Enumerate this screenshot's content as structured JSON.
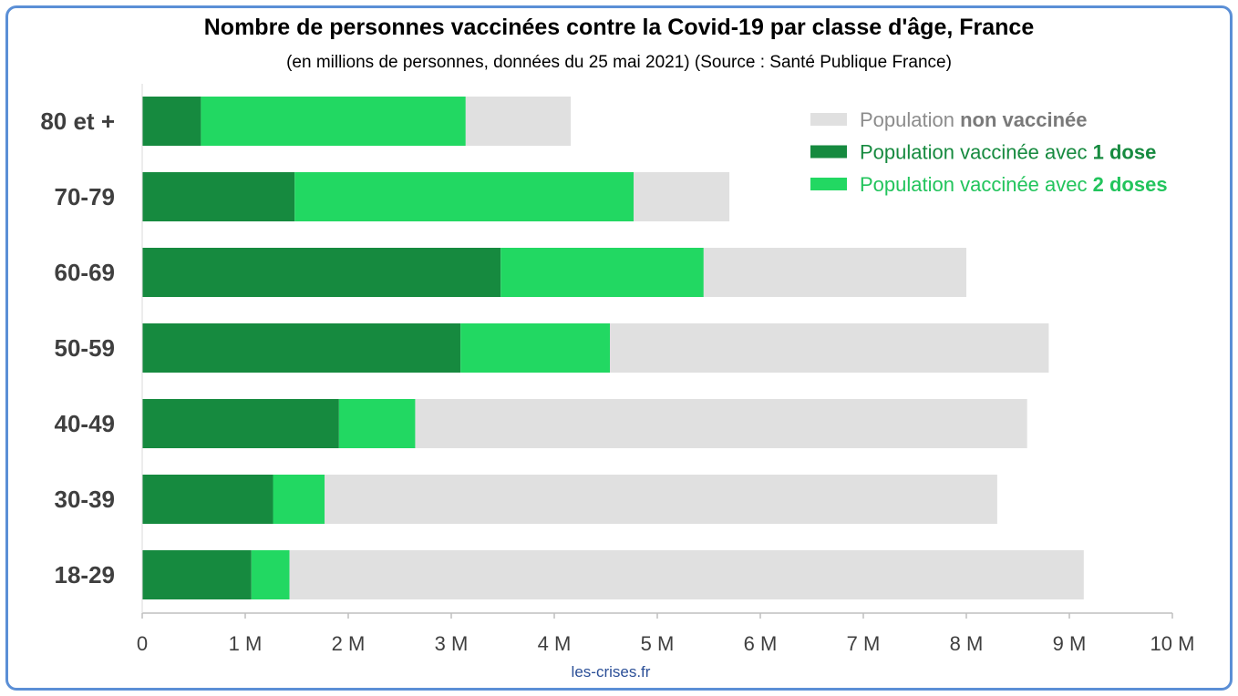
{
  "chart_data": {
    "type": "bar",
    "orientation": "horizontal",
    "stacked": true,
    "title": "Nombre de personnes vaccinées contre la Covid-19 par classe d'âge, France",
    "subtitle": "(en millions de personnes, données du 25 mai 2021) (Source : Santé Publique France)",
    "categories": [
      "80 et +",
      "70-79",
      "60-69",
      "50-59",
      "40-49",
      "30-39",
      "18-29"
    ],
    "xlim": [
      0,
      10
    ],
    "x_ticks": [
      0,
      1,
      2,
      3,
      4,
      5,
      6,
      7,
      8,
      9,
      10
    ],
    "x_tick_labels": [
      "0",
      "1 M",
      "2 M",
      "3 M",
      "4 M",
      "5 M",
      "6 M",
      "7 M",
      "8 M",
      "9 M",
      "10 M"
    ],
    "series": [
      {
        "name": "Population vaccinée avec 1 dose",
        "key": "dose1",
        "color": "#168a3f",
        "values": [
          0.57,
          1.48,
          3.48,
          3.09,
          1.91,
          1.27,
          1.06
        ]
      },
      {
        "name": "Population vaccinée avec 2 doses",
        "key": "dose2",
        "color": "#22d862",
        "values": [
          2.57,
          3.29,
          1.97,
          1.45,
          0.74,
          0.5,
          0.37
        ]
      },
      {
        "name": "Population non vaccinée",
        "key": "non",
        "color": "#e0e0e0",
        "values": [
          1.02,
          0.93,
          2.55,
          4.26,
          5.94,
          6.53,
          7.71
        ]
      }
    ],
    "legend": [
      {
        "key": "non",
        "prefix": "Population ",
        "bold": "non vaccinée",
        "color": "#e0e0e0",
        "text_color": "#8c8c8c",
        "bold_color": "#7a7a7a"
      },
      {
        "key": "dose1",
        "prefix": "Population vaccinée avec ",
        "bold": "1 dose",
        "color": "#168a3f",
        "text_color": "#168a3f",
        "bold_color": "#168a3f"
      },
      {
        "key": "dose2",
        "prefix": "Population vaccinée avec ",
        "bold": "2 doses",
        "color": "#22d862",
        "text_color": "#22c45c",
        "bold_color": "#22c45c"
      }
    ],
    "legend_position": "top-right"
  },
  "footer": "les-crises.fr"
}
